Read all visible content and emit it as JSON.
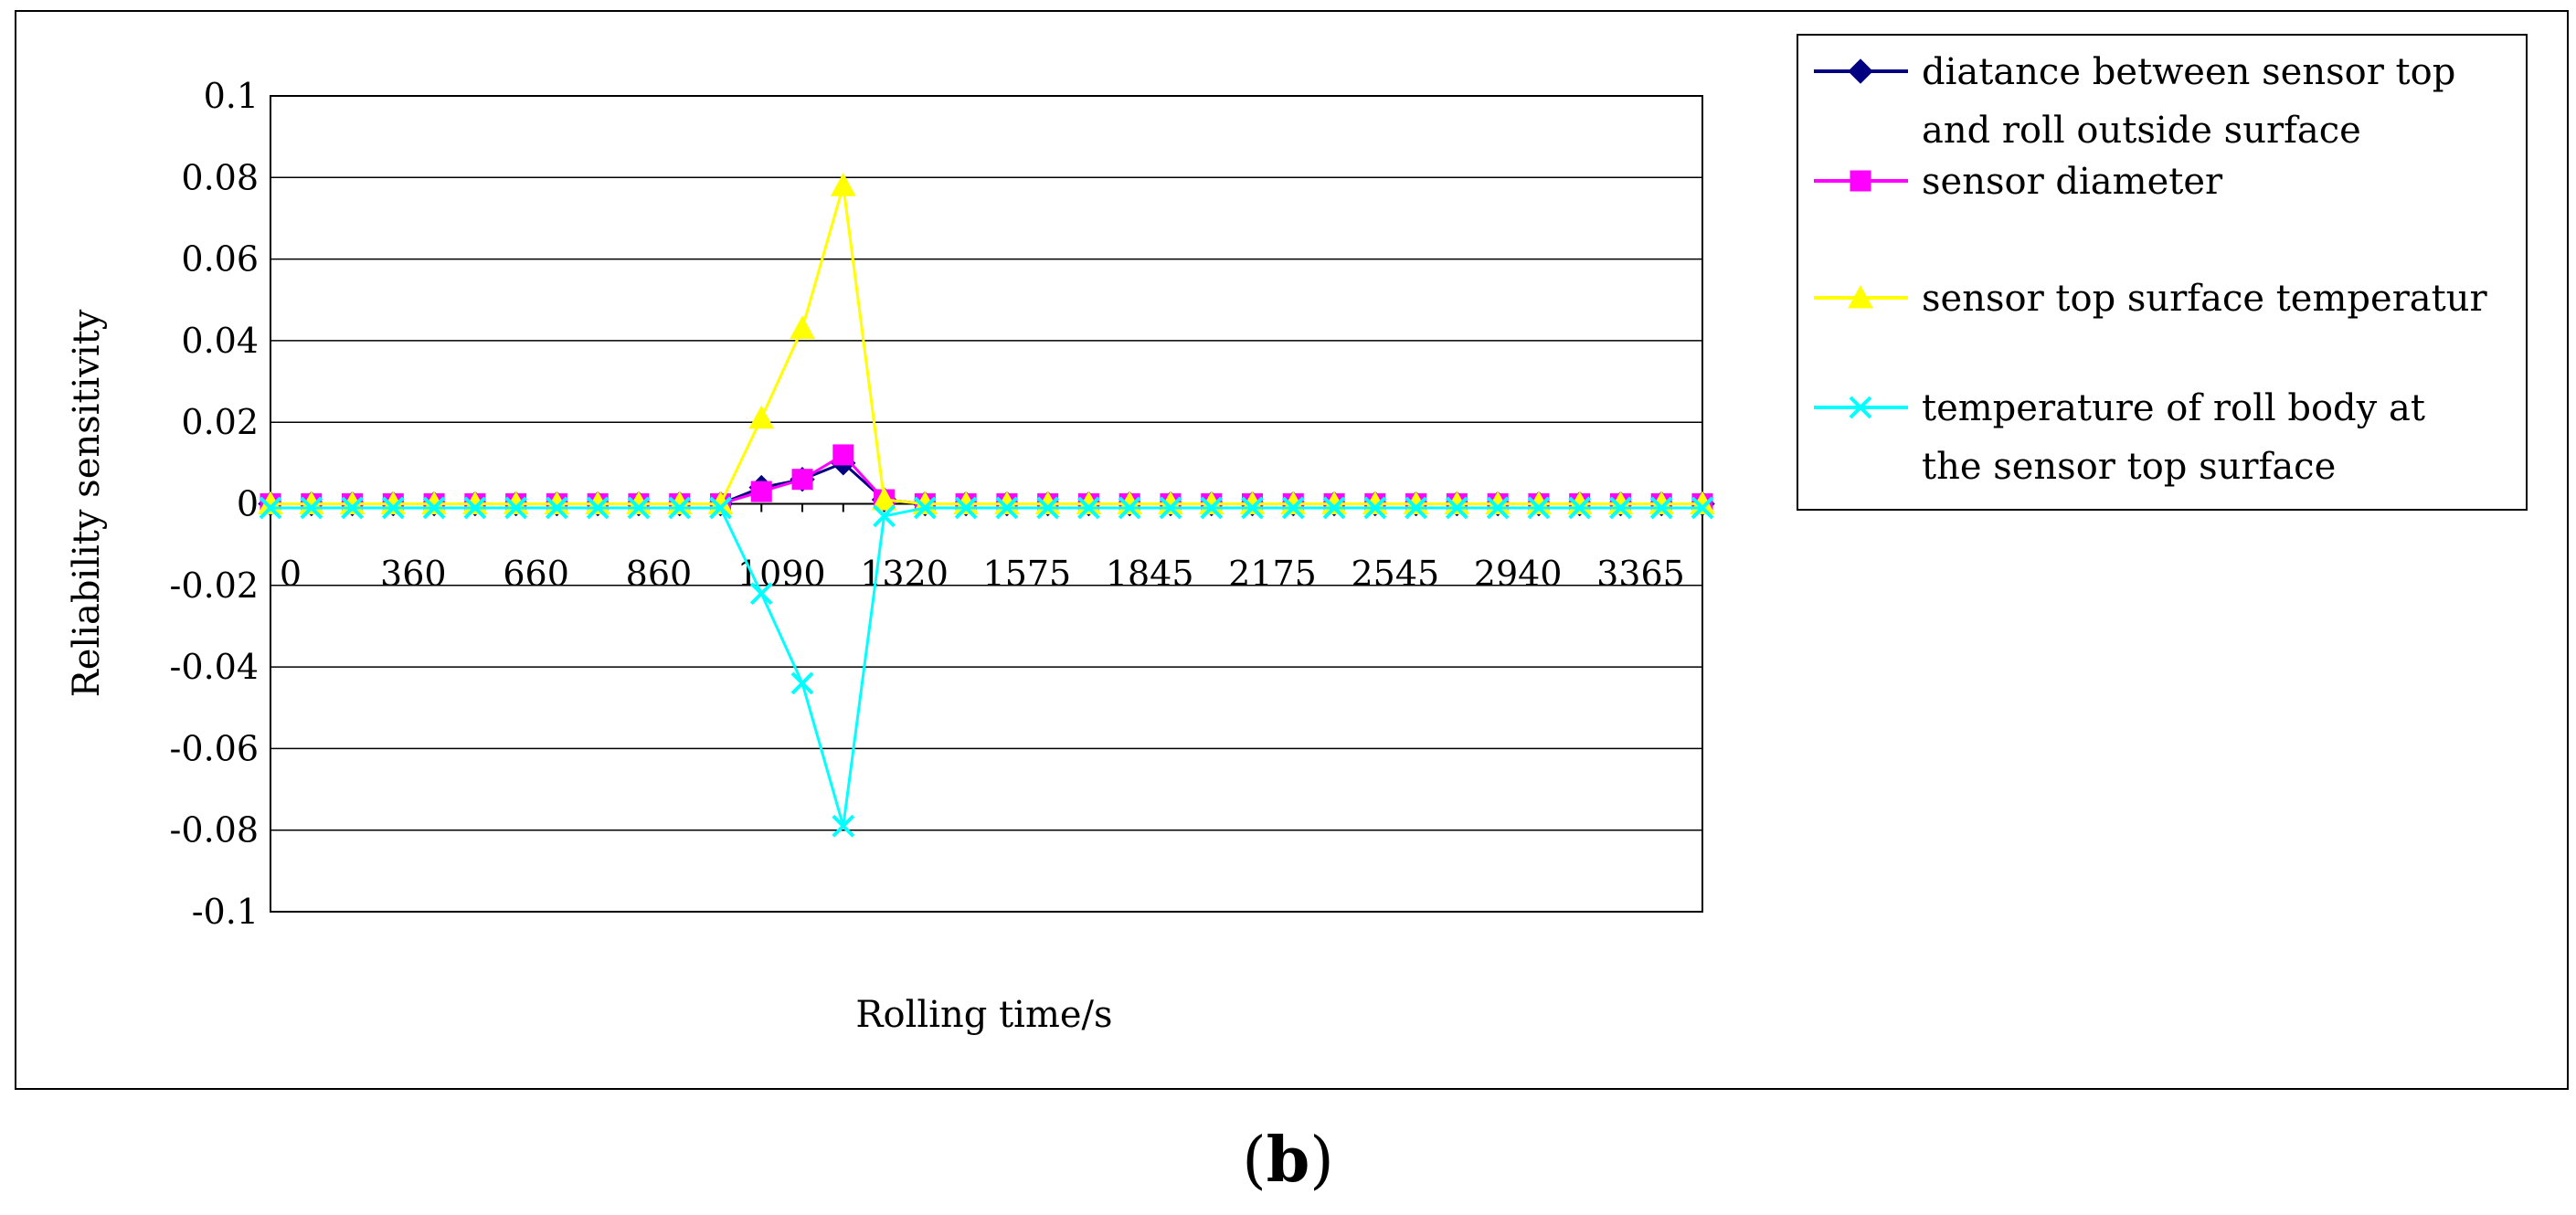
{
  "caption": {
    "open": "(",
    "letter": "b",
    "close": ")"
  },
  "chart_data": {
    "type": "line",
    "xlabel": "Rolling time/s",
    "ylabel": "Reliability sensitivity",
    "ylim": [
      -0.1,
      0.1
    ],
    "yticks": [
      "0.1",
      "0.08",
      "0.06",
      "0.04",
      "0.02",
      "0",
      "-0.02",
      "-0.04",
      "-0.06",
      "-0.08",
      "-0.1"
    ],
    "ytick_values": [
      0.1,
      0.08,
      0.06,
      0.04,
      0.02,
      0,
      -0.02,
      -0.04,
      -0.06,
      -0.08,
      -0.1
    ],
    "xtick_labels": [
      "0",
      "360",
      "660",
      "860",
      "1090",
      "1320",
      "1575",
      "1845",
      "2175",
      "2545",
      "2940",
      "3365"
    ],
    "xtick_category_index": [
      0,
      3,
      6,
      9,
      12,
      15,
      18,
      21,
      24,
      27,
      30,
      33
    ],
    "category_count": 36,
    "legend_position": "right",
    "grid": "horizontal",
    "series": [
      {
        "name": "diatance between sensor top and roll outside surface",
        "legend_lines": [
          "diatance between sensor top",
          "and roll outside surface"
        ],
        "color": "#000080",
        "marker": "diamond",
        "values": [
          0,
          0,
          0,
          0,
          0,
          0,
          0,
          0,
          0,
          0,
          0,
          0,
          0.004,
          0.006,
          0.01,
          0.001,
          0,
          0,
          0,
          0,
          0,
          0,
          0,
          0,
          0,
          0,
          0,
          0,
          0,
          0,
          0,
          0,
          0,
          0,
          0,
          0
        ]
      },
      {
        "name": "sensor diameter",
        "legend_lines": [
          "sensor diameter"
        ],
        "color": "#ff00ff",
        "marker": "square",
        "values": [
          0,
          0,
          0,
          0,
          0,
          0,
          0,
          0,
          0,
          0,
          0,
          0,
          0.003,
          0.006,
          0.012,
          0.001,
          0,
          0,
          0,
          0,
          0,
          0,
          0,
          0,
          0,
          0,
          0,
          0,
          0,
          0,
          0,
          0,
          0,
          0,
          0,
          0
        ]
      },
      {
        "name": "sensor top surface temperatur",
        "legend_lines": [
          "sensor top surface temperatur"
        ],
        "color": "#ffff00",
        "marker": "triangle",
        "values": [
          0,
          0,
          0,
          0,
          0,
          0,
          0,
          0,
          0,
          0,
          0,
          0,
          0.021,
          0.043,
          0.078,
          0.001,
          0,
          0,
          0,
          0,
          0,
          0,
          0,
          0,
          0,
          0,
          0,
          0,
          0,
          0,
          0,
          0,
          0,
          0,
          0,
          0
        ]
      },
      {
        "name": "temperature of roll body  at the sensor top surface",
        "legend_lines": [
          "temperature of roll body  at",
          "the sensor top surface"
        ],
        "color": "#00ffff",
        "marker": "x",
        "values": [
          -0.001,
          -0.001,
          -0.001,
          -0.001,
          -0.001,
          -0.001,
          -0.001,
          -0.001,
          -0.001,
          -0.001,
          -0.001,
          -0.001,
          -0.022,
          -0.044,
          -0.079,
          -0.003,
          -0.001,
          -0.001,
          -0.001,
          -0.001,
          -0.001,
          -0.001,
          -0.001,
          -0.001,
          -0.001,
          -0.001,
          -0.001,
          -0.001,
          -0.001,
          -0.001,
          -0.001,
          -0.001,
          -0.001,
          -0.001,
          -0.001,
          -0.001
        ]
      }
    ]
  }
}
